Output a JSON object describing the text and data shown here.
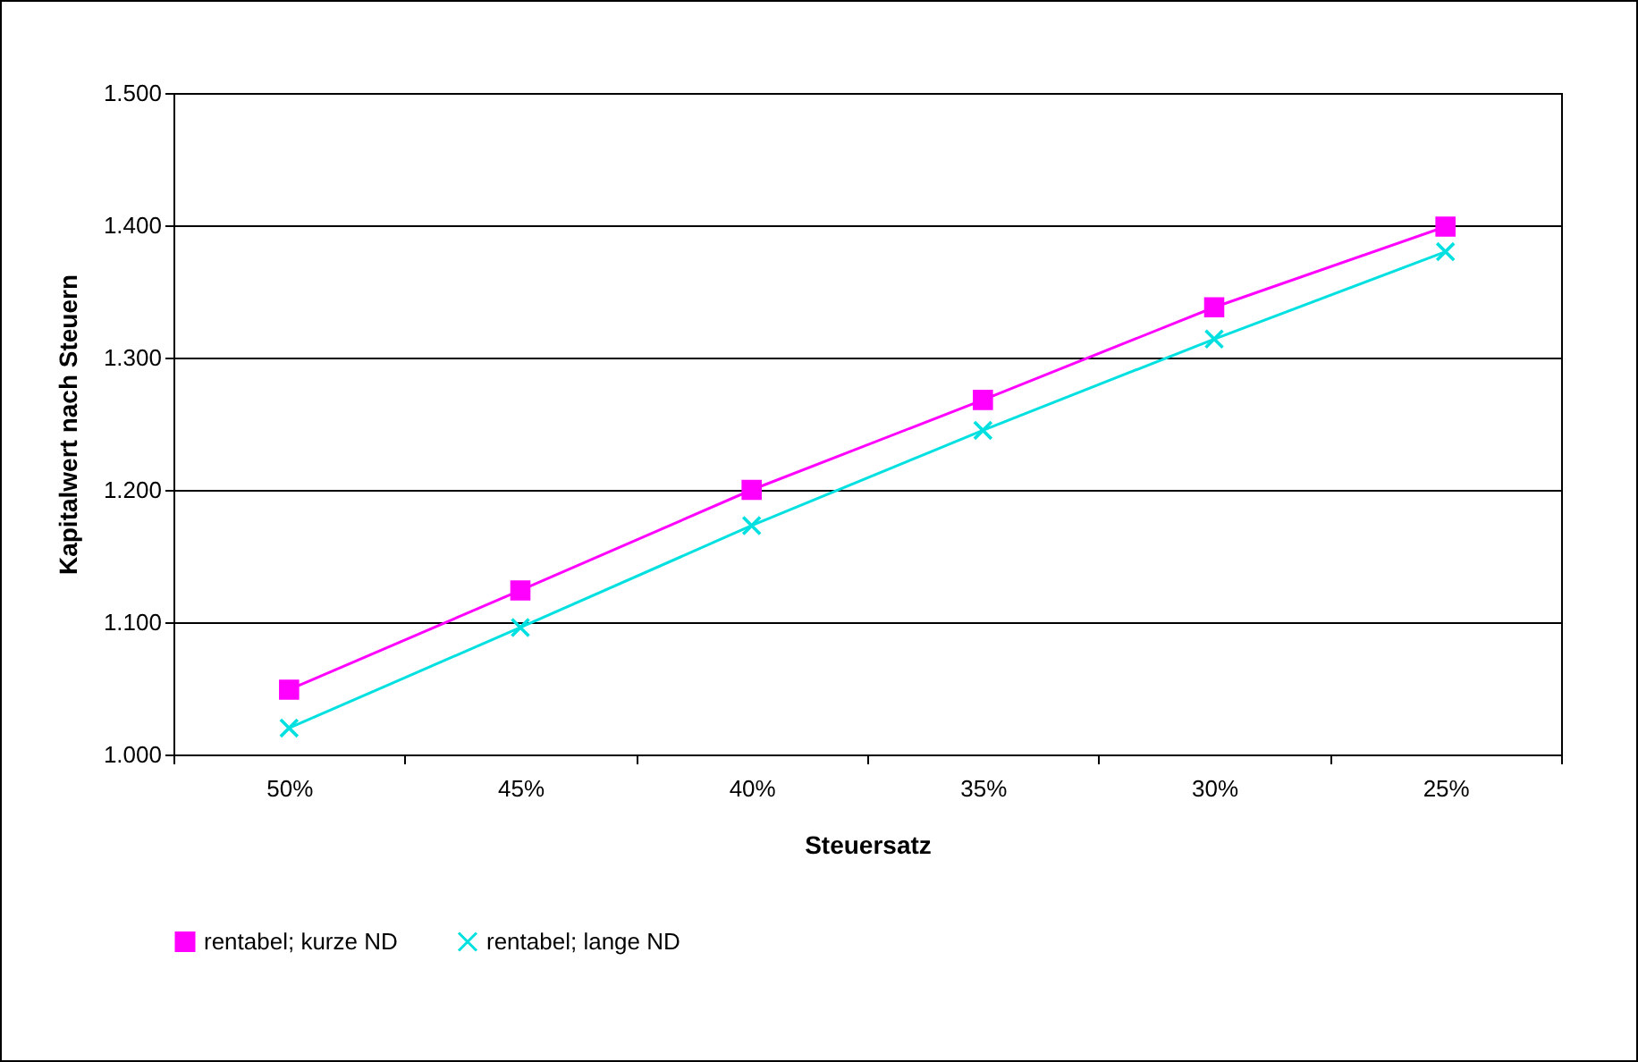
{
  "chart_data": {
    "type": "line",
    "xlabel": "Steuersatz",
    "ylabel": "Kapitalwert nach Steuern",
    "categories": [
      "50%",
      "45%",
      "40%",
      "35%",
      "30%",
      "25%"
    ],
    "series": [
      {
        "name": "rentabel; kurze ND",
        "color": "#ff00ff",
        "marker": "square",
        "values": [
          1.049,
          1.124,
          1.2,
          1.268,
          1.338,
          1.399
        ]
      },
      {
        "name": "rentabel; lange ND",
        "color": "#00e0e0",
        "marker": "cross",
        "values": [
          1.02,
          1.096,
          1.173,
          1.245,
          1.314,
          1.38
        ]
      }
    ],
    "ylim": [
      1.0,
      1.5
    ],
    "yticks": [
      {
        "value": 1.0,
        "label": "1.000"
      },
      {
        "value": 1.1,
        "label": "1.100"
      },
      {
        "value": 1.2,
        "label": "1.200"
      },
      {
        "value": 1.3,
        "label": "1.300"
      },
      {
        "value": 1.4,
        "label": "1.400"
      },
      {
        "value": 1.5,
        "label": "1.500"
      }
    ],
    "grid": "y",
    "legend": "bottom",
    "line_style": "solid"
  }
}
